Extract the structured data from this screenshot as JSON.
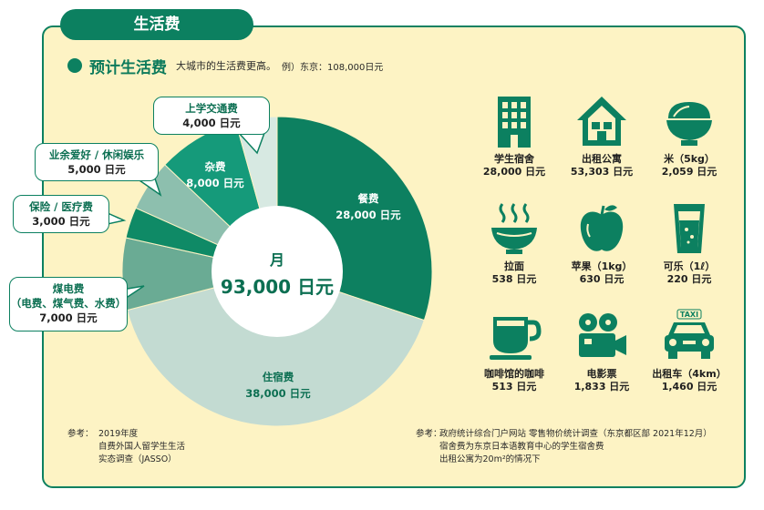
{
  "section_tab": "生活费",
  "heading": {
    "title": "预计生活费",
    "note": "大城市的生活费更高。",
    "example": "例）东京：108,000日元"
  },
  "chart_data": {
    "type": "pie",
    "center_label": "月",
    "center_value": "93,000 日元",
    "unit": "日元",
    "slices": [
      {
        "name": "餐费",
        "value": 28000,
        "value_label": "28,000 日元",
        "color": "#0d8060"
      },
      {
        "name": "住宿费",
        "value": 38000,
        "value_label": "38,000 日元",
        "color": "#c3dbd2"
      },
      {
        "name": "煤电费（电费、煤气费、水费）",
        "value": 7000,
        "value_label": "7,000 日元",
        "color": "#6aab94"
      },
      {
        "name": "保险 / 医疗费",
        "value": 3000,
        "value_label": "3,000 日元",
        "color": "#0f8a66"
      },
      {
        "name": "业余爱好 / 休闲娱乐",
        "value": 5000,
        "value_label": "5,000 日元",
        "color": "#8dbfae"
      },
      {
        "name": "杂费",
        "value": 8000,
        "value_label": "8,000 日元",
        "color": "#159a7a"
      },
      {
        "name": "上学交通费",
        "value": 4000,
        "value_label": "4,000 日元",
        "color": "#d7e9e2"
      }
    ]
  },
  "pie_labels": {
    "food": {
      "name": "餐费",
      "value": "28,000 日元"
    },
    "housing": {
      "name": "住宿费",
      "value": "38,000 日元"
    },
    "misc": {
      "name": "杂费",
      "value": "8,000 日元"
    }
  },
  "callouts": {
    "transport": {
      "name": "上学交通费",
      "value": "4,000 日元"
    },
    "hobby": {
      "name": "业余爱好 / 休闲娱乐",
      "value": "5,000 日元"
    },
    "insurance": {
      "name": "保险 / 医疗费",
      "value": "3,000 日元"
    },
    "utilities": {
      "name1": "煤电费",
      "name2": "（电费、煤气费、水费）",
      "value": "7,000 日元"
    }
  },
  "costs": [
    {
      "icon": "building-icon",
      "name": "学生宿舍",
      "value": "28,000 日元"
    },
    {
      "icon": "house-icon",
      "name": "出租公寓",
      "value": "53,303 日元"
    },
    {
      "icon": "rice-bowl-icon",
      "name": "米（5kg）",
      "value": "2,059 日元"
    },
    {
      "icon": "ramen-icon",
      "name": "拉面",
      "value": "538 日元"
    },
    {
      "icon": "apple-icon",
      "name": "苹果（1kg）",
      "value": "630 日元"
    },
    {
      "icon": "cola-glass-icon",
      "name": "可乐（1ℓ）",
      "value": "220 日元"
    },
    {
      "icon": "coffee-cup-icon",
      "name": "咖啡馆的咖啡",
      "value": "513 日元"
    },
    {
      "icon": "movie-camera-icon",
      "name": "电影票",
      "value": "1,833 日元"
    },
    {
      "icon": "taxi-icon",
      "name": "出租车（4km）",
      "value": "1,460 日元"
    }
  ],
  "taxi_sign": "TAXI",
  "sources": {
    "left": {
      "label": "参考：",
      "lines": [
        "2019年度",
        "自费外国人留学生生活",
        "实态调查（JASSO）"
      ]
    },
    "right": {
      "label": "参考：",
      "lines": [
        "政府统计综合门户网站 零售物价统计调查（东京都区部 2021年12月）",
        "宿舍费为东京日本语教育中心的学生宿舍费",
        "出租公寓为20m²的情况下"
      ]
    }
  },
  "colors": {
    "brand": "#0c8060",
    "panel": "#fdf3c4"
  }
}
